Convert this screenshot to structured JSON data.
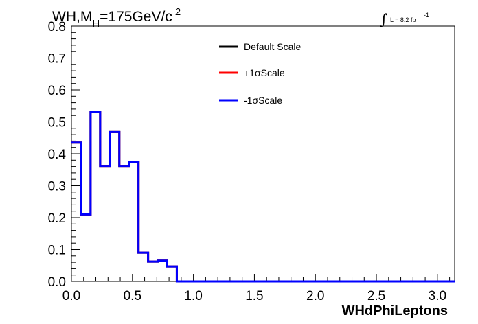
{
  "chart_data": {
    "type": "line",
    "title": {
      "main": "WH,M",
      "sub": "H",
      "rest": "=175GeV/c",
      "sup": "2"
    },
    "lumi": {
      "text": "L = 8.2 fb",
      "sup": "-1"
    },
    "xlabel": "WHdPhiLeptons",
    "ylabel": "",
    "xlim": [
      0,
      3.1416
    ],
    "ylim": [
      0,
      0.8
    ],
    "x_ticks": [
      "0.0",
      "0.5",
      "1.0",
      "1.5",
      "2.0",
      "2.5",
      "3.0"
    ],
    "y_ticks": [
      "0.0",
      "0.1",
      "0.2",
      "0.3",
      "0.4",
      "0.5",
      "0.6",
      "0.7",
      "0.8"
    ],
    "grid": false,
    "legend_position": "top-center",
    "bin_edges": [
      0,
      0.0785,
      0.157,
      0.2356,
      0.3142,
      0.3927,
      0.4712,
      0.5498,
      0.6283,
      0.7069,
      0.7854,
      0.864,
      0.9425,
      1.021,
      1.0996,
      1.1781,
      1.2566,
      1.3352,
      1.4137,
      1.4923,
      1.5708,
      1.6493,
      1.7279,
      1.8064,
      1.885,
      1.9635,
      2.042,
      2.1206,
      2.1991,
      2.2777,
      2.3562,
      2.4347,
      2.5133,
      2.5918,
      2.6704,
      2.7489,
      2.8274,
      2.906,
      2.9845,
      3.0631,
      3.1416
    ],
    "series": [
      {
        "name": "Default Scale",
        "color": "#000000",
        "values": [
          0.435,
          0.21,
          0.532,
          0.36,
          0.468,
          0.36,
          0.373,
          0.09,
          0.062,
          0.065,
          0.047,
          0.0,
          0.0,
          0.0,
          0.0,
          0.0,
          0.0,
          0.0,
          0.0,
          0.0,
          0.0,
          0.0,
          0.0,
          0.0,
          0.0,
          0.0,
          0.0,
          0.0,
          0.0,
          0.0,
          0.0,
          0.0,
          0.0,
          0.0,
          0.0,
          0.0,
          0.0,
          0.0,
          0.0,
          0.0
        ]
      },
      {
        "name": "+1σScale",
        "color": "#ff0000",
        "values": [
          0.435,
          0.21,
          0.532,
          0.36,
          0.468,
          0.36,
          0.373,
          0.09,
          0.062,
          0.065,
          0.047,
          0.0,
          0.0,
          0.0,
          0.0,
          0.0,
          0.0,
          0.0,
          0.0,
          0.0,
          0.0,
          0.0,
          0.0,
          0.0,
          0.0,
          0.0,
          0.0,
          0.0,
          0.0,
          0.0,
          0.0,
          0.0,
          0.0,
          0.0,
          0.0,
          0.0,
          0.0,
          0.0,
          0.0,
          0.0
        ]
      },
      {
        "name": "-1σScale",
        "color": "#0000ff",
        "values": [
          0.435,
          0.21,
          0.532,
          0.36,
          0.468,
          0.36,
          0.373,
          0.09,
          0.062,
          0.065,
          0.047,
          0.0,
          0.0,
          0.0,
          0.0,
          0.0,
          0.0,
          0.0,
          0.0,
          0.0,
          0.0,
          0.0,
          0.0,
          0.0,
          0.0,
          0.0,
          0.0,
          0.0,
          0.0,
          0.0,
          0.0,
          0.0,
          0.0,
          0.0,
          0.0,
          0.0,
          0.0,
          0.0,
          0.0,
          0.0
        ]
      }
    ]
  }
}
